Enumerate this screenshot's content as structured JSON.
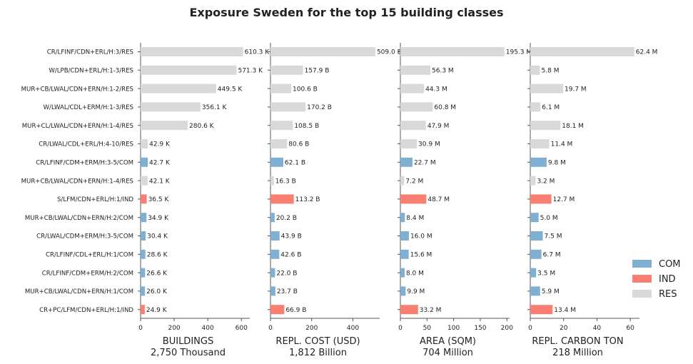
{
  "title": "Exposure Sweden for the top 15 building classes",
  "categories": [
    "CR/LFINF/CDN+ERL/H:3/RES",
    "W/LPB/CDN+ERL/H:1-3/RES",
    "MUR+CB/LWAL/CDN+ERN/H:1-2/RES",
    "W/LWAL/CDL+ERM/H:1-3/RES",
    "MUR+CL/LWAL/CDN+ERN/H:1-4/RES",
    "CR/LWAL/CDL+ERL/H:4-10/RES",
    "CR/LFINF/CDM+ERM/H:3-5/COM",
    "MUR+CB/LWAL/CDN+ERN/H:1-4/RES",
    "S/LFM/CDN+ERL/H:1/IND",
    "MUR+CB/LWAL/CDN+ERN/H:2/COM",
    "CR/LWAL/CDM+ERM/H:3-5/COM",
    "CR/LFINF/CDL+ERL/H:1/COM",
    "CR/LFINF/CDM+ERM/H:2/COM",
    "MUR+CB/LWAL/CDN+ERN/H:1/COM",
    "CR+PC/LFM/CDN+ERL/H:1/IND"
  ],
  "occupancy": [
    "RES",
    "RES",
    "RES",
    "RES",
    "RES",
    "RES",
    "COM",
    "RES",
    "IND",
    "COM",
    "COM",
    "COM",
    "COM",
    "COM",
    "IND"
  ],
  "colors": {
    "COM": "#7fb0d2",
    "IND": "#f97f72",
    "RES": "#d9d9d9"
  },
  "legend": {
    "items": [
      "COM",
      "IND",
      "RES"
    ],
    "placement": "lower-right"
  },
  "chart_data": [
    {
      "type": "bar",
      "xlabel": "BUILDINGS",
      "total": "2,750 Thousand",
      "xlim": [
        0,
        650
      ],
      "ticks": [
        0,
        200,
        400,
        600
      ],
      "values": [
        610.3,
        571.3,
        449.5,
        356.1,
        280.6,
        42.9,
        42.7,
        42.1,
        36.5,
        34.9,
        30.4,
        28.6,
        26.6,
        26.0,
        24.9
      ],
      "labels": [
        "610.3 K",
        "571.3 K",
        "449.5 K",
        "356.1 K",
        "280.6 K",
        "42.9 K",
        "42.7 K",
        "42.1 K",
        "36.5 K",
        "34.9 K",
        "30.4 K",
        "28.6 K",
        "26.6 K",
        "26.0 K",
        "24.9 K"
      ]
    },
    {
      "type": "bar",
      "xlabel": "REPL. COST (USD)",
      "total": "1,812 Billion",
      "xlim": [
        0,
        530
      ],
      "ticks": [
        0,
        200,
        400
      ],
      "values": [
        509.0,
        157.9,
        100.6,
        170.2,
        108.5,
        80.6,
        62.1,
        16.3,
        113.2,
        20.2,
        43.9,
        42.6,
        22.0,
        23.7,
        66.9
      ],
      "labels": [
        "509.0 B",
        "157.9 B",
        "100.6 B",
        "170.2 B",
        "108.5 B",
        "80.6 B",
        "62.1 B",
        "16.3 B",
        "113.2 B",
        "20.2 B",
        "43.9 B",
        "42.6 B",
        "22.0 B",
        "23.7 B",
        "66.9 B"
      ]
    },
    {
      "type": "bar",
      "xlabel": "AREA (SQM)",
      "total": "704 Million",
      "xlim": [
        0,
        205
      ],
      "ticks": [
        0,
        50,
        100,
        150,
        200
      ],
      "values": [
        195.3,
        56.3,
        44.3,
        60.8,
        47.9,
        30.9,
        22.7,
        7.2,
        48.7,
        8.4,
        16.0,
        15.6,
        8.0,
        9.9,
        33.2
      ],
      "labels": [
        "195.3 M",
        "56.3 M",
        "44.3 M",
        "60.8 M",
        "47.9 M",
        "30.9 M",
        "22.7 M",
        "7.2 M",
        "48.7 M",
        "8.4 M",
        "16.0 M",
        "15.6 M",
        "8.0 M",
        "9.9 M",
        "33.2 M"
      ]
    },
    {
      "type": "bar",
      "xlabel": "REPL. CARBON TON",
      "total": "218 Million",
      "xlim": [
        0,
        65.5
      ],
      "ticks": [
        0,
        20,
        40,
        60
      ],
      "values": [
        62.4,
        5.8,
        19.7,
        6.1,
        18.1,
        11.4,
        9.8,
        3.2,
        12.7,
        5.0,
        7.5,
        6.7,
        3.5,
        5.9,
        13.4
      ],
      "labels": [
        "62.4 M",
        "5.8 M",
        "19.7 M",
        "6.1 M",
        "18.1 M",
        "11.4 M",
        "9.8 M",
        "3.2 M",
        "12.7 M",
        "5.0 M",
        "7.5 M",
        "6.7 M",
        "3.5 M",
        "5.9 M",
        "13.4 M"
      ]
    }
  ]
}
